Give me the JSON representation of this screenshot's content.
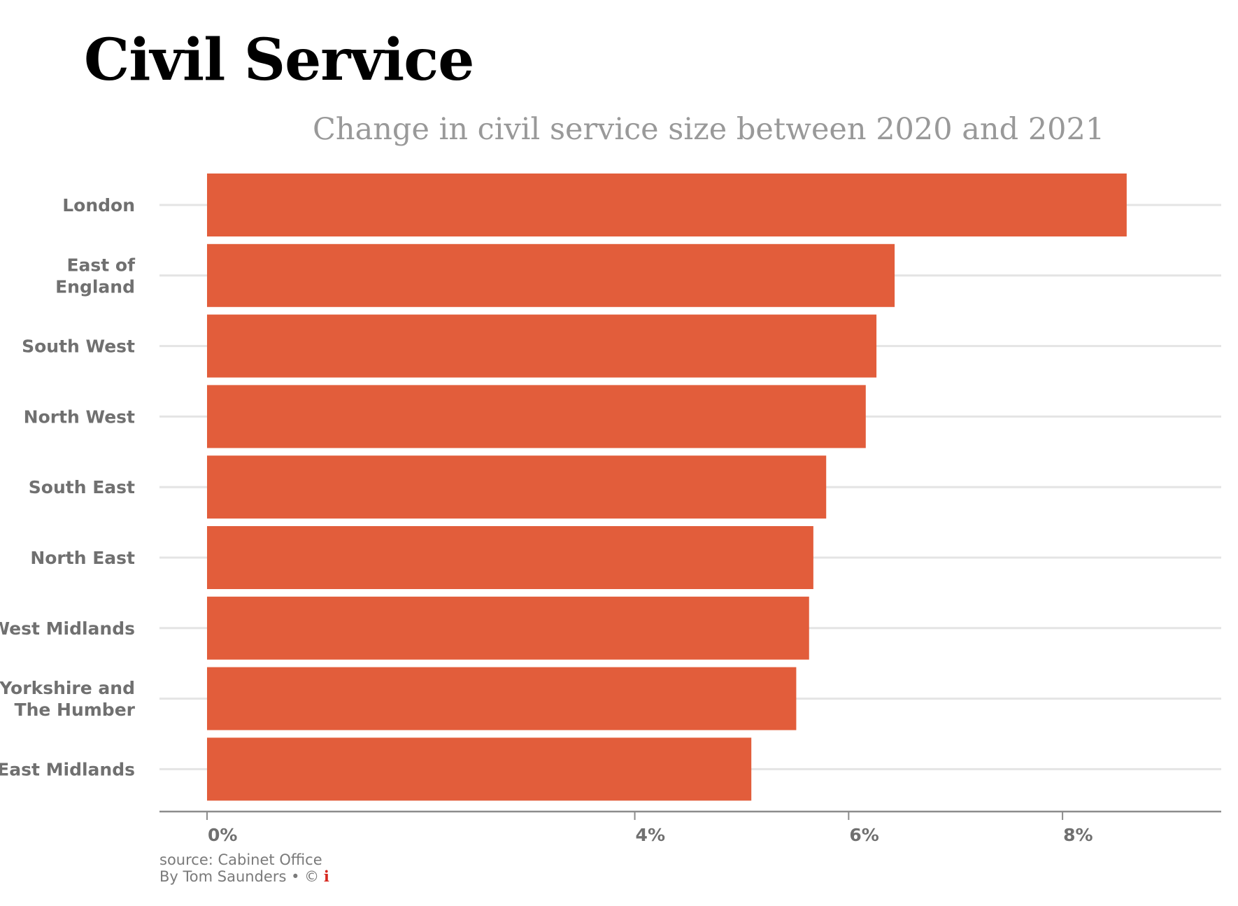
{
  "chart_data": {
    "type": "bar",
    "orientation": "horizontal",
    "title": "Civil Service",
    "subtitle": "Change in civil service size between 2020 and 2021",
    "categories": [
      [
        "London"
      ],
      [
        "East of",
        "England"
      ],
      [
        "South West"
      ],
      [
        "North West"
      ],
      [
        "South East"
      ],
      [
        "North East"
      ],
      [
        "West Midlands"
      ],
      [
        "Yorkshire and",
        "The Humber"
      ],
      [
        "East Midlands"
      ]
    ],
    "values": [
      8.6,
      6.43,
      6.26,
      6.16,
      5.79,
      5.67,
      5.63,
      5.51,
      5.09
    ],
    "xlim": [
      0,
      9.0
    ],
    "ticks": [
      0,
      4,
      6,
      8
    ],
    "tick_labels": [
      "0%",
      "4%",
      "6%",
      "8%"
    ],
    "xlabel": "",
    "ylabel": "",
    "grid": "horizontal",
    "color": "#e25d3b"
  },
  "footer": {
    "source": "source: Cabinet Office",
    "byline": "By Tom Saunders",
    "separator": "• ©",
    "logo": "i"
  }
}
